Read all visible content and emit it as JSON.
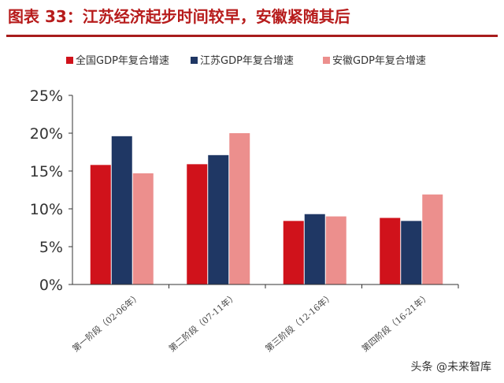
{
  "title": "图表 33：江苏经济起步时间较早，安徽紧随其后",
  "watermark": "头条 @未来智库",
  "chart_data": {
    "type": "bar",
    "categories": [
      "第一阶段（02-06年）",
      "第二阶段（07-11年）",
      "第三阶段（12-16年）",
      "第四阶段（16-21年）"
    ],
    "series": [
      {
        "name": "全国GDP年复合增速",
        "color": "#d0121b",
        "values": [
          15.8,
          15.9,
          8.4,
          8.8
        ]
      },
      {
        "name": "江苏GDP年复合增速",
        "color": "#1f3764",
        "values": [
          19.6,
          17.1,
          9.3,
          8.4
        ]
      },
      {
        "name": "安徽GDP年复合增速",
        "color": "#ec8f8d",
        "values": [
          14.7,
          20.0,
          9.0,
          11.9
        ]
      }
    ],
    "y_ticks": [
      "0%",
      "5%",
      "10%",
      "15%",
      "20%",
      "25%"
    ],
    "ylim": [
      0,
      25
    ],
    "grid": false,
    "legend_position": "top"
  }
}
